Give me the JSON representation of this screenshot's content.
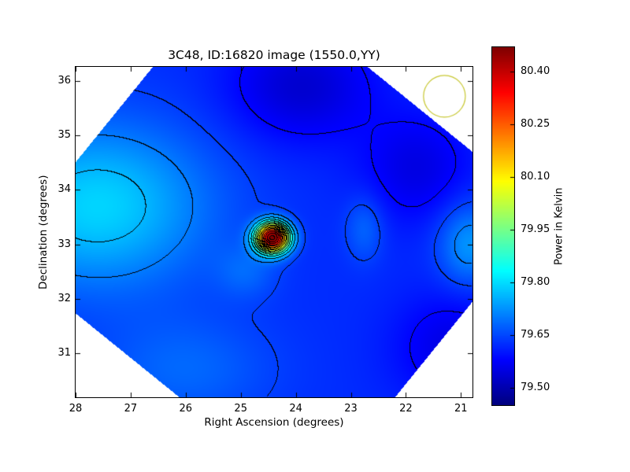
{
  "chart_data": {
    "type": "heatmap",
    "title": "3C48, ID:16820 image (1550.0,YY)",
    "xlabel": "Right Ascension (degrees)",
    "ylabel": "Declination (degrees)",
    "x_range": [
      28.0,
      20.79
    ],
    "y_range": [
      30.19,
      36.26
    ],
    "x_ticks": [
      28,
      27,
      26,
      25,
      24,
      23,
      22,
      21
    ],
    "y_ticks": [
      31,
      32,
      33,
      34,
      35,
      36
    ],
    "x_axis_reversed": true,
    "colormap": "jet",
    "grid": false,
    "colorbar": {
      "label": "Power in Kelvin",
      "vmin": 79.45,
      "vmax": 80.47,
      "ticks": [
        79.5,
        79.65,
        79.8,
        79.95,
        80.1,
        80.25,
        80.4
      ]
    },
    "peak": {
      "ra": 24.42,
      "dec": 33.12,
      "value_kelvin": 80.47
    },
    "background_kelvin": 79.6,
    "field": {
      "base": 79.62,
      "components": [
        {
          "ra": 27.6,
          "dec": 33.7,
          "sx": 2.0,
          "sy": 1.5,
          "a": 0.17
        },
        {
          "ra": 26.0,
          "dec": 30.7,
          "sx": 1.6,
          "sy": 1.0,
          "a": 0.06
        },
        {
          "ra": 23.9,
          "dec": 35.9,
          "sx": 1.3,
          "sy": 1.0,
          "a": -0.09
        },
        {
          "ra": 21.8,
          "dec": 34.4,
          "sx": 1.0,
          "sy": 1.0,
          "a": -0.07
        },
        {
          "ra": 21.1,
          "dec": 31.1,
          "sx": 1.1,
          "sy": 1.0,
          "a": -0.07
        },
        {
          "ra": 20.85,
          "dec": 33.0,
          "sx": 0.55,
          "sy": 0.75,
          "a": 0.11
        },
        {
          "ra": 22.75,
          "dec": 33.3,
          "sx": 0.35,
          "sy": 0.6,
          "a": 0.06
        },
        {
          "ra": 24.9,
          "dec": 32.5,
          "sx": 0.55,
          "sy": 0.5,
          "a": 0.05
        },
        {
          "ra": 24.42,
          "dec": 33.12,
          "sx": 0.3,
          "sy": 0.27,
          "a": 0.86
        }
      ]
    },
    "contours": {
      "start": 79.58,
      "step": 0.06,
      "color": "#000000"
    },
    "mask": {
      "center_ra": 24.4,
      "center_dec": 33.22,
      "half_u_deg": 3.6,
      "half_v_deg": 3.41,
      "angle_deg": 39
    },
    "beam": {
      "ra": 21.3,
      "dec": 35.72,
      "radius_deg": 0.38,
      "color": "#c8c832"
    }
  }
}
